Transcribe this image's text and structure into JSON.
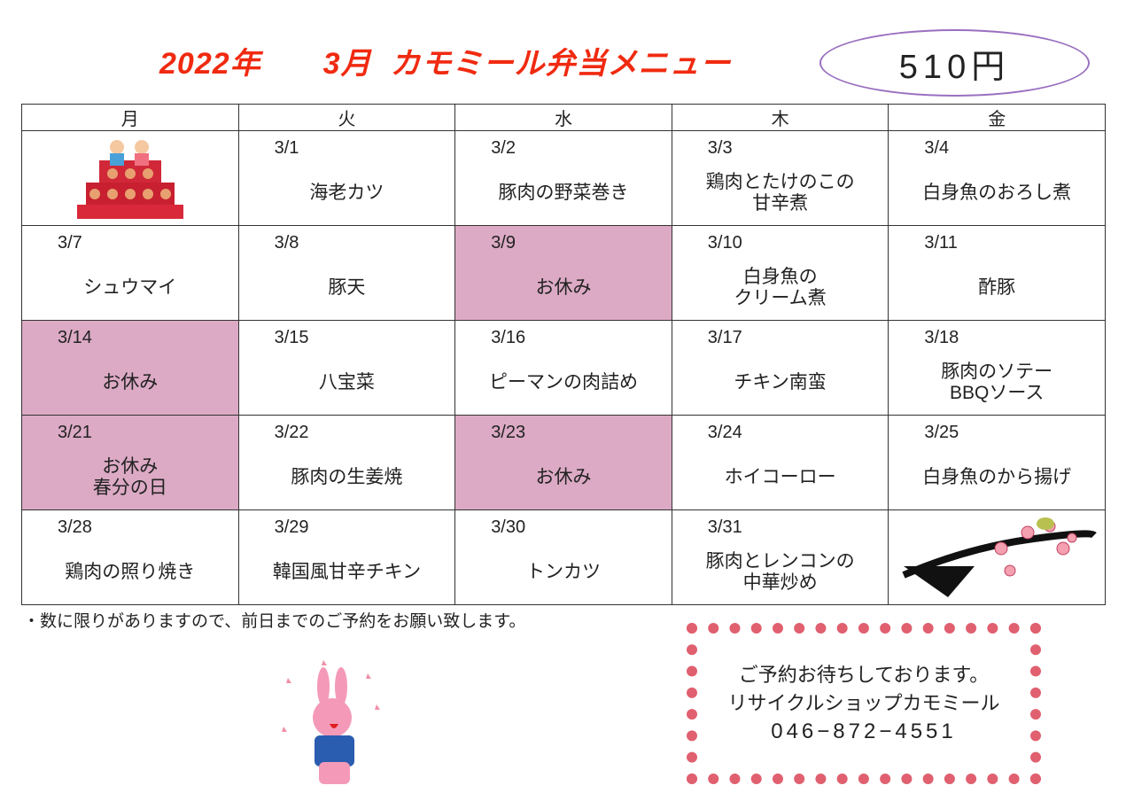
{
  "header": {
    "title": "2022年　　3月  カモミール弁当メニュー",
    "price": "510円"
  },
  "weekdays": [
    "月",
    "火",
    "水",
    "木",
    "金"
  ],
  "weeks": [
    [
      {
        "image": "hina-dolls-illustration"
      },
      {
        "date": "3/1",
        "menu": [
          "海老カツ"
        ]
      },
      {
        "date": "3/2",
        "menu": [
          "豚肉の野菜巻き"
        ]
      },
      {
        "date": "3/3",
        "menu": [
          "鶏肉とたけのこの",
          "甘辛煮"
        ]
      },
      {
        "date": "3/4",
        "menu": [
          "白身魚のおろし煮"
        ]
      }
    ],
    [
      {
        "date": "3/7",
        "menu": [
          "シュウマイ"
        ]
      },
      {
        "date": "3/8",
        "menu": [
          "豚天"
        ]
      },
      {
        "date": "3/9",
        "menu": [
          "お休み"
        ],
        "holiday": true
      },
      {
        "date": "3/10",
        "menu": [
          "白身魚の",
          "クリーム煮"
        ]
      },
      {
        "date": "3/11",
        "menu": [
          "酢豚"
        ]
      }
    ],
    [
      {
        "date": "3/14",
        "menu": [
          "お休み"
        ],
        "holiday": true
      },
      {
        "date": "3/15",
        "menu": [
          "八宝菜"
        ]
      },
      {
        "date": "3/16",
        "menu": [
          "ピーマンの肉詰め"
        ]
      },
      {
        "date": "3/17",
        "menu": [
          "チキン南蛮"
        ]
      },
      {
        "date": "3/18",
        "menu": [
          "豚肉のソテー",
          "BBQソース"
        ]
      }
    ],
    [
      {
        "date": "3/21",
        "menu": [
          "お休み",
          "春分の日"
        ],
        "holiday": true
      },
      {
        "date": "3/22",
        "menu": [
          "豚肉の生姜焼"
        ]
      },
      {
        "date": "3/23",
        "menu": [
          "お休み"
        ],
        "holiday": true
      },
      {
        "date": "3/24",
        "menu": [
          "ホイコーロー"
        ]
      },
      {
        "date": "3/25",
        "menu": [
          "白身魚のから揚げ"
        ]
      }
    ],
    [
      {
        "date": "3/28",
        "menu": [
          "鶏肉の照り焼き"
        ]
      },
      {
        "date": "3/29",
        "menu": [
          "韓国風甘辛チキン"
        ]
      },
      {
        "date": "3/30",
        "menu": [
          "トンカツ"
        ]
      },
      {
        "date": "3/31",
        "menu": [
          "豚肉とレンコンの",
          "中華炒め"
        ]
      },
      {
        "image": "plum-branch-bird-illustration"
      }
    ]
  ],
  "colors": {
    "title": "#f02a10",
    "holiday": "#dcaac5",
    "price_ellipse": "#9a70c0",
    "frame": "#e06070"
  },
  "note": "・数に限りがありますので、前日までのご予約をお願い致します。",
  "contact": {
    "line1": "ご予約お待ちしております。",
    "line2": "リサイクルショップカモミール",
    "phone": "046−872−4551"
  }
}
